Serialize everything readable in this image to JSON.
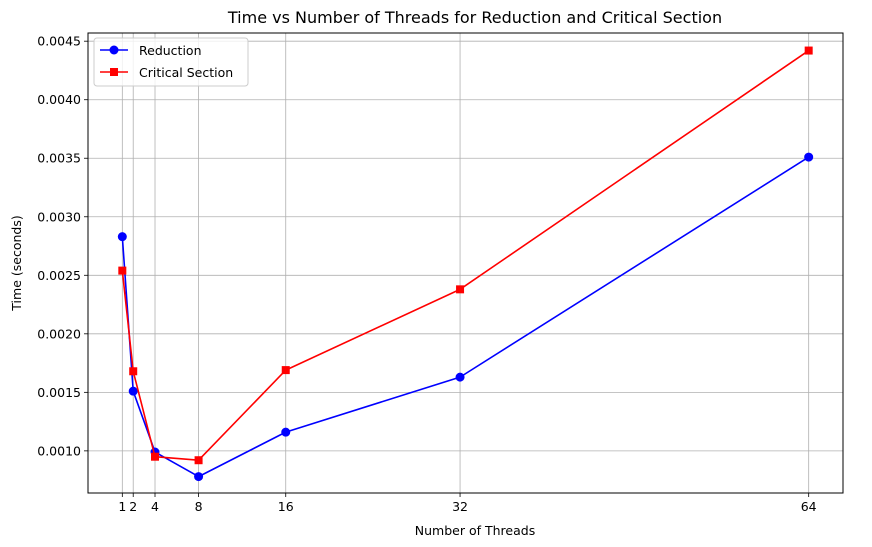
{
  "chart_data": {
    "type": "line",
    "title": "Time vs Number of Threads for Reduction and Critical Section",
    "xlabel": "Number of Threads",
    "ylabel": "Time (seconds)",
    "x": [
      1,
      2,
      4,
      8,
      16,
      32,
      64
    ],
    "x_ticks": [
      "1",
      "2",
      "4",
      "8",
      "16",
      "32",
      "64"
    ],
    "xlim": [
      -2.15,
      67.15
    ],
    "y_ticks": [
      "0.0010",
      "0.0015",
      "0.0020",
      "0.0025",
      "0.0030",
      "0.0035",
      "0.0040",
      "0.0045"
    ],
    "ylim": [
      0.00064,
      0.00457
    ],
    "grid": true,
    "legend_position": "top-left",
    "series": [
      {
        "name": "Reduction",
        "color": "#0000ff",
        "marker": "circle",
        "values": [
          0.00283,
          0.00151,
          0.00099,
          0.00078,
          0.00116,
          0.00163,
          0.00351
        ]
      },
      {
        "name": "Critical Section",
        "color": "#ff0000",
        "marker": "square",
        "values": [
          0.00254,
          0.00168,
          0.00095,
          0.00092,
          0.00169,
          0.00238,
          0.00442
        ]
      }
    ]
  }
}
